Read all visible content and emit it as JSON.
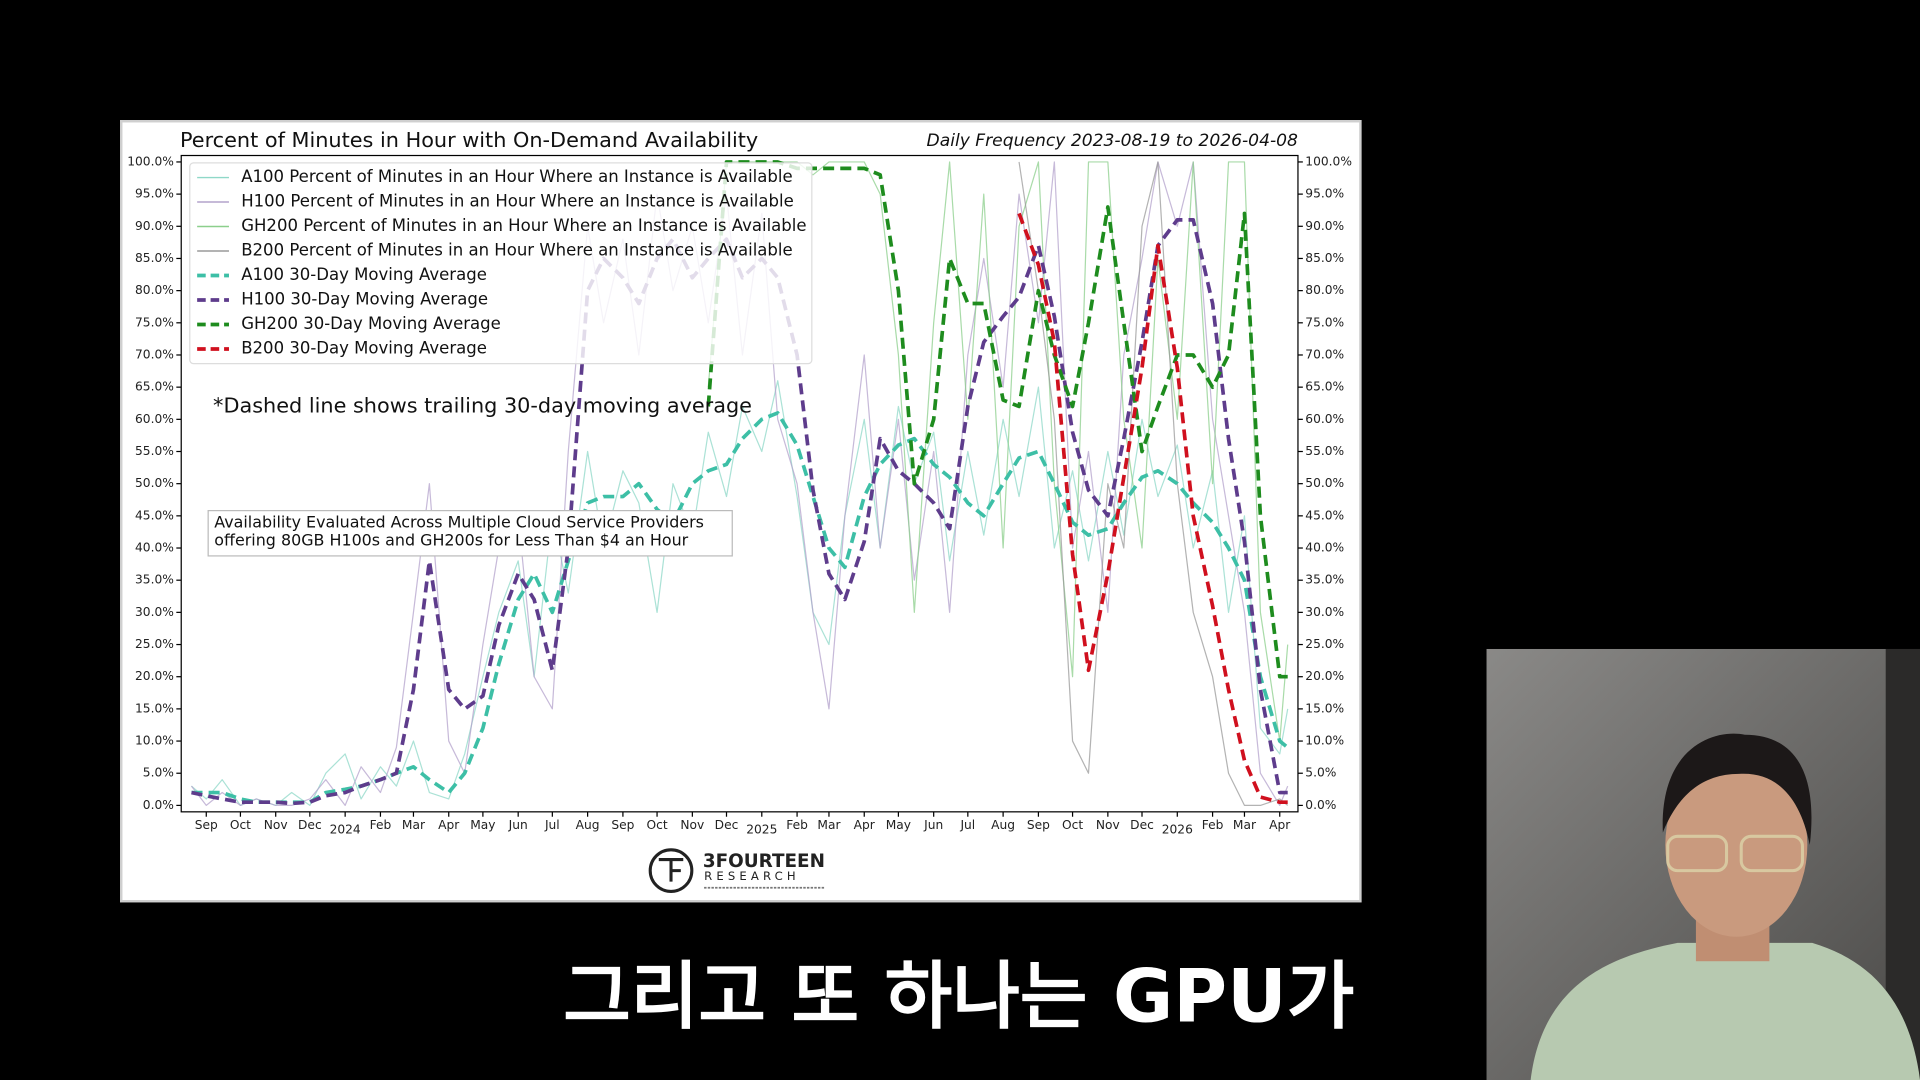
{
  "chart_data": {
    "type": "line",
    "title": "Percent of Minutes in Hour with On-Demand Availability",
    "subtitle": "Daily Frequency 2023-08-19 to 2026-04-08",
    "annotations": [
      "*Dashed line shows trailing 30-day moving average"
    ],
    "note_lines": [
      "Availability Evaluated Across Multiple Cloud Service Providers",
      "offering 80GB H100s and GH200s for Less Than $4 an Hour"
    ],
    "legend": "upper left",
    "xlim": [
      "2023-08-10",
      "2026-04-17"
    ],
    "ylim": [
      -1,
      101
    ],
    "x": [
      "2023-08-19",
      "2023-09-01",
      "2023-09-15",
      "2023-10-01",
      "2023-10-15",
      "2023-11-01",
      "2023-11-15",
      "2023-12-01",
      "2023-12-15",
      "2024-01-01",
      "2024-01-15",
      "2024-02-01",
      "2024-02-15",
      "2024-03-01",
      "2024-03-15",
      "2024-04-01",
      "2024-04-15",
      "2024-05-01",
      "2024-05-15",
      "2024-06-01",
      "2024-06-15",
      "2024-07-01",
      "2024-07-15",
      "2024-08-01",
      "2024-08-15",
      "2024-09-01",
      "2024-09-15",
      "2024-10-01",
      "2024-10-15",
      "2024-11-01",
      "2024-11-15",
      "2024-12-01",
      "2024-12-15",
      "2025-01-01",
      "2025-01-15",
      "2025-02-01",
      "2025-02-15",
      "2025-03-01",
      "2025-03-15",
      "2025-04-01",
      "2025-04-15",
      "2025-05-01",
      "2025-05-15",
      "2025-06-01",
      "2025-06-15",
      "2025-07-01",
      "2025-07-15",
      "2025-08-01",
      "2025-08-15",
      "2025-09-01",
      "2025-09-15",
      "2025-10-01",
      "2025-10-15",
      "2025-11-01",
      "2025-11-15",
      "2025-12-01",
      "2025-12-15",
      "2026-01-01",
      "2026-01-15",
      "2026-02-01",
      "2026-02-15",
      "2026-03-01",
      "2026-03-15",
      "2026-04-01",
      "2026-04-08"
    ],
    "xticks": [
      {
        "value": "2023-09-01",
        "label": "Sep"
      },
      {
        "value": "2023-10-01",
        "label": "Oct"
      },
      {
        "value": "2023-11-01",
        "label": "Nov"
      },
      {
        "value": "2023-12-01",
        "label": "Dec"
      },
      {
        "value": "2024-01-01",
        "label": "2024"
      },
      {
        "value": "2024-02-01",
        "label": "Feb"
      },
      {
        "value": "2024-03-01",
        "label": "Mar"
      },
      {
        "value": "2024-04-01",
        "label": "Apr"
      },
      {
        "value": "2024-05-01",
        "label": "May"
      },
      {
        "value": "2024-06-01",
        "label": "Jun"
      },
      {
        "value": "2024-07-01",
        "label": "Jul"
      },
      {
        "value": "2024-08-01",
        "label": "Aug"
      },
      {
        "value": "2024-09-01",
        "label": "Sep"
      },
      {
        "value": "2024-10-01",
        "label": "Oct"
      },
      {
        "value": "2024-11-01",
        "label": "Nov"
      },
      {
        "value": "2024-12-01",
        "label": "Dec"
      },
      {
        "value": "2025-01-01",
        "label": "2025"
      },
      {
        "value": "2025-02-01",
        "label": "Feb"
      },
      {
        "value": "2025-03-01",
        "label": "Mar"
      },
      {
        "value": "2025-04-01",
        "label": "Apr"
      },
      {
        "value": "2025-05-01",
        "label": "May"
      },
      {
        "value": "2025-06-01",
        "label": "Jun"
      },
      {
        "value": "2025-07-01",
        "label": "Jul"
      },
      {
        "value": "2025-08-01",
        "label": "Aug"
      },
      {
        "value": "2025-09-01",
        "label": "Sep"
      },
      {
        "value": "2025-10-01",
        "label": "Oct"
      },
      {
        "value": "2025-11-01",
        "label": "Nov"
      },
      {
        "value": "2025-12-01",
        "label": "Dec"
      },
      {
        "value": "2026-01-01",
        "label": "2026"
      },
      {
        "value": "2026-02-01",
        "label": "Feb"
      },
      {
        "value": "2026-03-01",
        "label": "Mar"
      },
      {
        "value": "2026-04-01",
        "label": "Apr"
      }
    ],
    "yticks": [
      {
        "value": 0,
        "label": "0.0%"
      },
      {
        "value": 5,
        "label": "5.0%"
      },
      {
        "value": 10,
        "label": "10.0%"
      },
      {
        "value": 15,
        "label": "15.0%"
      },
      {
        "value": 20,
        "label": "20.0%"
      },
      {
        "value": 25,
        "label": "25.0%"
      },
      {
        "value": 30,
        "label": "30.0%"
      },
      {
        "value": 35,
        "label": "35.0%"
      },
      {
        "value": 40,
        "label": "40.0%"
      },
      {
        "value": 45,
        "label": "45.0%"
      },
      {
        "value": 50,
        "label": "50.0%"
      },
      {
        "value": 55,
        "label": "55.0%"
      },
      {
        "value": 60,
        "label": "60.0%"
      },
      {
        "value": 65,
        "label": "65.0%"
      },
      {
        "value": 70,
        "label": "70.0%"
      },
      {
        "value": 75,
        "label": "75.0%"
      },
      {
        "value": 80,
        "label": "80.0%"
      },
      {
        "value": 85,
        "label": "85.0%"
      },
      {
        "value": 90,
        "label": "90.0%"
      },
      {
        "value": 95,
        "label": "95.0%"
      },
      {
        "value": 100,
        "label": "100.0%"
      }
    ],
    "series": [
      {
        "name": "A100 Percent of Minutes in an Hour Where an Instance is Available",
        "color": "#8fd8c8",
        "linestyle": "solid",
        "values": [
          3,
          1,
          4,
          0,
          1,
          0,
          2,
          0,
          5,
          8,
          1,
          6,
          3,
          10,
          2,
          1,
          8,
          20,
          30,
          38,
          20,
          45,
          33,
          55,
          40,
          52,
          47,
          30,
          50,
          42,
          58,
          48,
          62,
          55,
          66,
          48,
          30,
          25,
          45,
          60,
          40,
          62,
          50,
          58,
          38,
          55,
          42,
          60,
          48,
          65,
          40,
          52,
          38,
          55,
          42,
          60,
          48,
          56,
          40,
          52,
          30,
          45,
          12,
          8,
          15
        ]
      },
      {
        "name": "H100 Percent of Minutes in an Hour Where an Instance is Available",
        "color": "#b4a3cc",
        "linestyle": "solid",
        "values": [
          3,
          0,
          2,
          0,
          1,
          0,
          0,
          1,
          4,
          0,
          6,
          2,
          9,
          30,
          50,
          10,
          5,
          25,
          40,
          45,
          20,
          15,
          55,
          90,
          75,
          88,
          70,
          95,
          80,
          90,
          75,
          95,
          70,
          92,
          60,
          50,
          30,
          15,
          45,
          70,
          40,
          60,
          35,
          55,
          30,
          70,
          85,
          65,
          95,
          75,
          100,
          40,
          55,
          30,
          70,
          85,
          100,
          90,
          100,
          60,
          45,
          30,
          5,
          0,
          3
        ]
      },
      {
        "name": "GH200 Percent of Minutes in an Hour Where an Instance is Available",
        "color": "#8ccf8c",
        "linestyle": "solid",
        "values": [
          null,
          null,
          null,
          null,
          null,
          null,
          null,
          null,
          null,
          null,
          null,
          null,
          null,
          null,
          null,
          null,
          null,
          null,
          null,
          null,
          null,
          null,
          null,
          null,
          null,
          null,
          null,
          null,
          null,
          null,
          65,
          100,
          100,
          100,
          100,
          100,
          98,
          100,
          100,
          100,
          95,
          70,
          30,
          75,
          100,
          60,
          95,
          40,
          90,
          100,
          50,
          20,
          100,
          100,
          60,
          40,
          85,
          60,
          100,
          50,
          100,
          100,
          30,
          10,
          25
        ]
      },
      {
        "name": "B200 Percent of Minutes in an Hour Where an Instance is Available",
        "color": "#9a9a9a",
        "linestyle": "solid",
        "values": [
          null,
          null,
          null,
          null,
          null,
          null,
          null,
          null,
          null,
          null,
          null,
          null,
          null,
          null,
          null,
          null,
          null,
          null,
          null,
          null,
          null,
          null,
          null,
          null,
          null,
          null,
          null,
          null,
          null,
          null,
          null,
          null,
          null,
          null,
          null,
          null,
          null,
          null,
          null,
          null,
          null,
          null,
          null,
          null,
          null,
          null,
          null,
          null,
          100,
          80,
          60,
          10,
          5,
          50,
          40,
          90,
          100,
          50,
          30,
          20,
          5,
          0,
          0,
          1,
          0
        ]
      },
      {
        "name": "A100 30-Day Moving Average",
        "color": "#3dbfa6",
        "linestyle": "dashed",
        "values": [
          2,
          2,
          2,
          1,
          0.5,
          0.5,
          0.5,
          0.5,
          2,
          2.5,
          3,
          4,
          5,
          6,
          4,
          2,
          5,
          12,
          22,
          32,
          36,
          30,
          38,
          47,
          48,
          48,
          50,
          46,
          44,
          50,
          52,
          53,
          57,
          60,
          61,
          56,
          48,
          40,
          37,
          48,
          53,
          56,
          57,
          53,
          51,
          47,
          45,
          50,
          54,
          55,
          50,
          44,
          42,
          43,
          47,
          51,
          52,
          50,
          47,
          44,
          40,
          35,
          20,
          10,
          9
        ]
      },
      {
        "name": "H100 30-Day Moving Average",
        "color": "#5e3c8c",
        "linestyle": "dashed",
        "values": [
          2,
          1.5,
          1,
          0.5,
          0.5,
          0.5,
          0.3,
          0.5,
          1.5,
          2,
          3,
          4,
          5,
          18,
          38,
          18,
          15,
          17,
          28,
          36,
          32,
          21,
          40,
          80,
          85,
          82,
          78,
          85,
          88,
          82,
          85,
          88,
          82,
          85,
          82,
          70,
          49,
          36,
          32,
          41,
          57,
          52,
          50,
          47,
          43,
          62,
          72,
          76,
          79,
          87,
          76,
          58,
          49,
          45,
          57,
          72,
          87,
          91,
          91,
          78,
          57,
          41,
          18,
          2,
          2
        ]
      },
      {
        "name": "GH200 30-Day Moving Average",
        "color": "#1e8c1e",
        "linestyle": "dashed",
        "values": [
          null,
          null,
          null,
          null,
          null,
          null,
          null,
          null,
          null,
          null,
          null,
          null,
          null,
          null,
          null,
          null,
          null,
          null,
          null,
          null,
          null,
          null,
          null,
          null,
          null,
          null,
          null,
          null,
          null,
          null,
          62,
          100,
          100,
          100,
          100,
          99,
          99,
          99,
          99,
          99,
          98,
          80,
          50,
          60,
          85,
          78,
          78,
          63,
          62,
          80,
          70,
          62,
          75,
          93,
          75,
          55,
          62,
          70,
          70,
          65,
          70,
          92,
          45,
          20,
          20
        ]
      },
      {
        "name": "B200 30-Day Moving Average",
        "color": "#d0101e",
        "linestyle": "dashed",
        "values": [
          null,
          null,
          null,
          null,
          null,
          null,
          null,
          null,
          null,
          null,
          null,
          null,
          null,
          null,
          null,
          null,
          null,
          null,
          null,
          null,
          null,
          null,
          null,
          null,
          null,
          null,
          null,
          null,
          null,
          null,
          null,
          null,
          null,
          null,
          null,
          null,
          null,
          null,
          null,
          null,
          null,
          null,
          null,
          null,
          null,
          null,
          null,
          null,
          92,
          84,
          72,
          39,
          21,
          36,
          51,
          68,
          87,
          68,
          45,
          31,
          18,
          7,
          1.3,
          0.5,
          0.5
        ]
      }
    ]
  },
  "logo": {
    "name": "3FOURTEEN",
    "sub": "RESEARCH"
  },
  "caption": "그리고 또 하나는 GPU가"
}
